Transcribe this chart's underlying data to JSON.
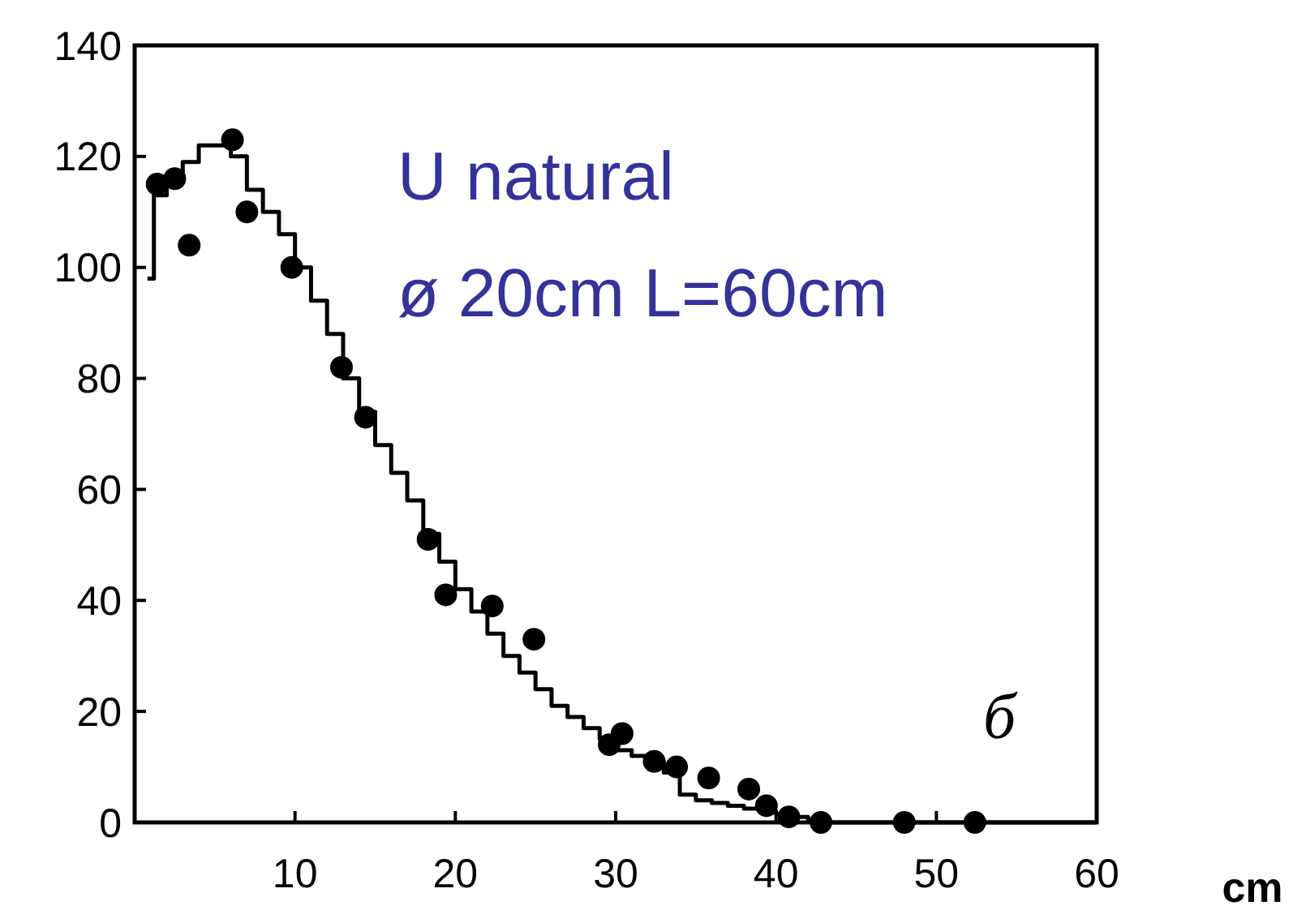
{
  "chart_data": {
    "type": "scatter",
    "xlabel": "cm",
    "xlim": [
      0,
      60
    ],
    "xticks": [
      {
        "value": 0,
        "label": null
      },
      10,
      20,
      30,
      40,
      50,
      60
    ],
    "ylim": [
      0,
      140
    ],
    "yticks": [
      0,
      20,
      40,
      60,
      80,
      100,
      120,
      140
    ],
    "grid": false,
    "marker": "circle",
    "annotations": [
      "U natural",
      "ø 20cm L=60cm",
      "б"
    ],
    "series": [
      {
        "color": "#000000",
        "x": [
          1.4,
          2.5,
          3.4,
          6.1,
          7.0,
          9.8,
          12.9,
          14.4,
          18.3,
          19.4,
          22.3,
          24.9,
          29.6,
          30.4,
          32.4,
          33.8,
          35.8,
          38.3,
          39.4,
          40.8,
          42.8,
          48,
          52.4
        ],
        "values": [
          115,
          116,
          104,
          123,
          110,
          100,
          82,
          73,
          51,
          41,
          39,
          33,
          14,
          16,
          11,
          10,
          8,
          6,
          3,
          1,
          0,
          0,
          0
        ]
      },
      {
        "type": "step",
        "color": "#000000",
        "line_style": "solid",
        "marker": "none",
        "x": [
          0.8,
          1.2,
          2,
          3,
          4,
          5,
          6,
          7,
          8,
          9,
          10,
          11,
          12,
          13,
          14,
          15,
          16,
          17,
          18,
          19,
          20,
          21,
          22,
          23,
          24,
          25,
          26,
          27,
          28,
          29,
          30,
          31,
          32,
          33,
          34,
          35,
          36,
          37,
          38,
          39,
          40,
          41,
          42,
          43,
          60
        ],
        "values": [
          98,
          113,
          116,
          119,
          122,
          122,
          120,
          114,
          110,
          106,
          100,
          94,
          88,
          80,
          74,
          68,
          63,
          58,
          52,
          47,
          42,
          38,
          34,
          30,
          27,
          24,
          21,
          19,
          17,
          15,
          13,
          12,
          11,
          9,
          5,
          4,
          3.5,
          3,
          2.5,
          2,
          1.5,
          1,
          0.5,
          0,
          0
        ]
      }
    ]
  }
}
